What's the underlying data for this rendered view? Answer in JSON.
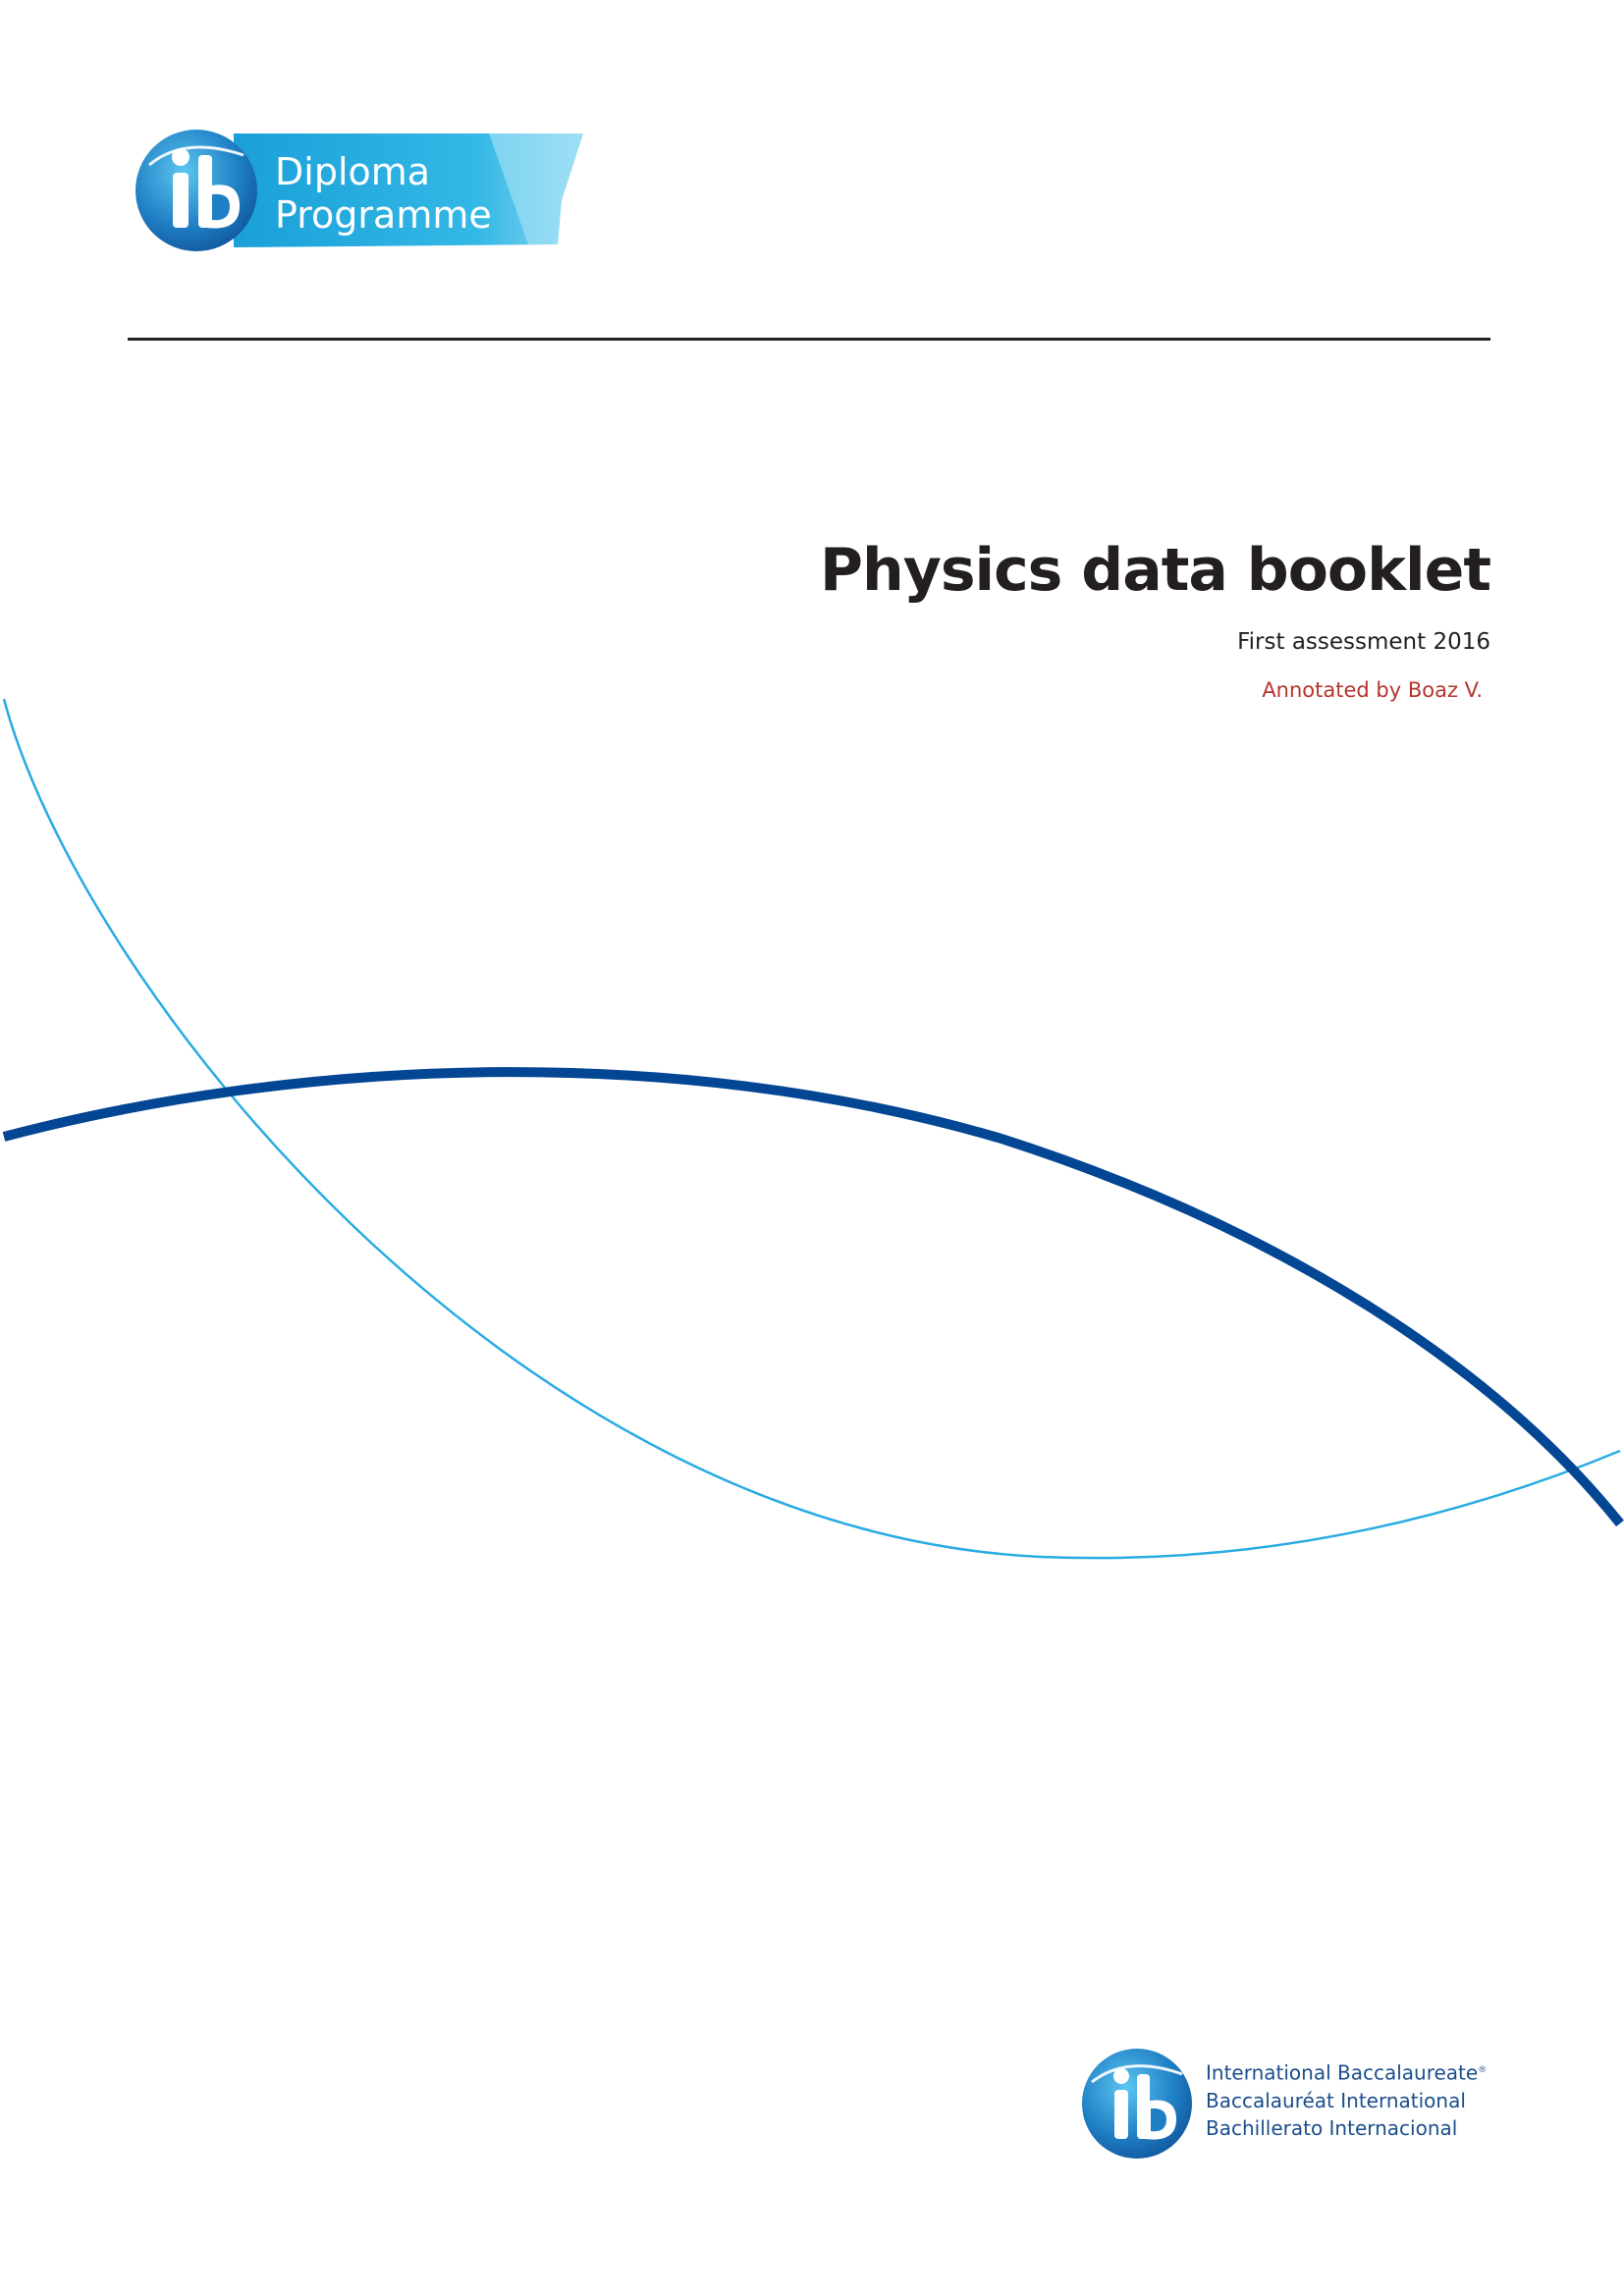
{
  "header": {
    "programme_logo": {
      "line1": "Diploma",
      "line2": "Programme"
    }
  },
  "cover": {
    "title": "Physics data booklet",
    "subtitle": "First assessment 2016",
    "annotation": "Annotated by Boaz V."
  },
  "footer": {
    "names": [
      "International Baccalaureate",
      "Baccalauréat International",
      "Bachillerato Internacional"
    ],
    "registered_mark": "®"
  },
  "colors": {
    "title_text": "#231f20",
    "annotation_text": "#b5352f",
    "thin_arc": "#29abe2",
    "thick_arc": "#034694",
    "rule": "#222222",
    "ib_blue": "#1b4e8c"
  },
  "icons": {
    "header_logo": "ib-diploma-programme-logo",
    "footer_logo": "ib-globe-logo"
  }
}
